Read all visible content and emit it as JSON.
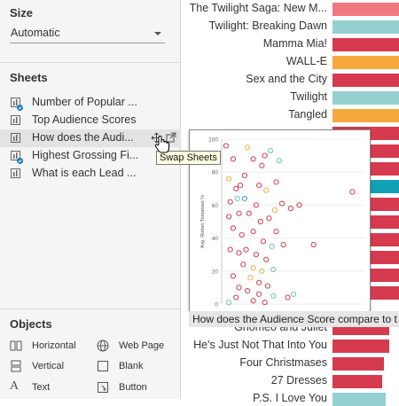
{
  "size": {
    "title": "Size",
    "value": "Automatic"
  },
  "sheets": {
    "title": "Sheets",
    "items": [
      {
        "label": "Number of Popular ..."
      },
      {
        "label": "Top Audience Scores"
      },
      {
        "label": "How does the Audi..."
      },
      {
        "label": "Highest Grossing Fi..."
      },
      {
        "label": "What is each Lead ..."
      }
    ]
  },
  "tooltip": "Swap Sheets",
  "objects": {
    "title": "Objects",
    "items": [
      {
        "label": "Horizontal",
        "icon": "horizontal-container-icon"
      },
      {
        "label": "Web Page",
        "icon": "globe-icon"
      },
      {
        "label": "Vertical",
        "icon": "vertical-container-icon"
      },
      {
        "label": "Blank",
        "icon": "blank-icon"
      },
      {
        "label": "Text",
        "icon": "text-icon"
      },
      {
        "label": "Button",
        "icon": "button-icon"
      }
    ]
  },
  "bars": {
    "rows": [
      {
        "label": "The Twilight Saga: New M...",
        "color": "#f0787e",
        "value": 0.34
      },
      {
        "label": "Twilight: Breaking Dawn",
        "color": "#94d0d1",
        "value": 0.34
      },
      {
        "label": "Mamma Mia!",
        "color": "#d63a4f",
        "value": 0.34
      },
      {
        "label": "WALL-E",
        "color": "#f5a93c",
        "value": 0.34
      },
      {
        "label": "Sex and the City",
        "color": "#d63a4f",
        "value": 0.34
      },
      {
        "label": "Twilight",
        "color": "#94d0d1",
        "value": 0.34
      },
      {
        "label": "Tangled",
        "color": "#f5a93c",
        "value": 0.34
      },
      {
        "label": "Gnomeo and Juliet",
        "color": "#d63a4f",
        "value": 0.29
      },
      {
        "label": "He's Just Not That Into You",
        "color": "#d63a4f",
        "value": 0.29
      },
      {
        "label": "Four Christmases",
        "color": "#d63a4f",
        "value": 0.26
      },
      {
        "label": "27 Dresses",
        "color": "#d63a4f",
        "value": 0.25
      },
      {
        "label": "P.S. I Love You",
        "color": "#94d0d1",
        "value": 0.27
      }
    ],
    "hidden_bars": [
      {
        "color": "#d63a4f"
      },
      {
        "color": "#d63a4f"
      },
      {
        "color": "#d63a4f"
      },
      {
        "color": "#12a0b4"
      },
      {
        "color": "#d63a4f"
      },
      {
        "color": "#d63a4f"
      },
      {
        "color": "#d63a4f"
      },
      {
        "color": "#d63a4f"
      },
      {
        "color": "#d63a4f"
      },
      {
        "color": "#d63a4f"
      }
    ]
  },
  "drag_preview": {
    "caption": "How does the Audience Score compare to t",
    "chart_data": {
      "type": "scatter",
      "ylabel": "Avg. Rotten Tomatoes %",
      "y_ticks": [
        "100",
        "80",
        "60",
        "40",
        "20",
        "0"
      ],
      "ylim": [
        0,
        100
      ],
      "xlim": [
        0,
        100
      ],
      "colors": {
        "red": "#d63a4f",
        "teal": "#6cc0c4",
        "orange": "#f5a93c",
        "green": "#a6c94a",
        "blue": "#4a8fd4"
      },
      "points": [
        {
          "x": 3,
          "y": 96,
          "c": "red"
        },
        {
          "x": 8,
          "y": 88,
          "c": "red"
        },
        {
          "x": 18,
          "y": 95,
          "c": "orange"
        },
        {
          "x": 22,
          "y": 88,
          "c": "red"
        },
        {
          "x": 30,
          "y": 90,
          "c": "red"
        },
        {
          "x": 34,
          "y": 93,
          "c": "teal"
        },
        {
          "x": 40,
          "y": 87,
          "c": "teal"
        },
        {
          "x": 28,
          "y": 84,
          "c": "red"
        },
        {
          "x": 16,
          "y": 78,
          "c": "red"
        },
        {
          "x": 5,
          "y": 76,
          "c": "orange"
        },
        {
          "x": 10,
          "y": 70,
          "c": "red"
        },
        {
          "x": 13,
          "y": 72,
          "c": "red"
        },
        {
          "x": 26,
          "y": 72,
          "c": "red"
        },
        {
          "x": 31,
          "y": 69,
          "c": "orange"
        },
        {
          "x": 38,
          "y": 74,
          "c": "red"
        },
        {
          "x": 6,
          "y": 62,
          "c": "red"
        },
        {
          "x": 11,
          "y": 64,
          "c": "teal"
        },
        {
          "x": 16,
          "y": 64,
          "c": "blue"
        },
        {
          "x": 24,
          "y": 60,
          "c": "red"
        },
        {
          "x": 42,
          "y": 61,
          "c": "red"
        },
        {
          "x": 48,
          "y": 58,
          "c": "red"
        },
        {
          "x": 54,
          "y": 60,
          "c": "red"
        },
        {
          "x": 37,
          "y": 57,
          "c": "orange"
        },
        {
          "x": 5,
          "y": 53,
          "c": "red"
        },
        {
          "x": 12,
          "y": 55,
          "c": "red"
        },
        {
          "x": 19,
          "y": 55,
          "c": "red"
        },
        {
          "x": 27,
          "y": 50,
          "c": "red"
        },
        {
          "x": 33,
          "y": 52,
          "c": "red"
        },
        {
          "x": 38,
          "y": 44,
          "c": "red"
        },
        {
          "x": 8,
          "y": 46,
          "c": "red"
        },
        {
          "x": 14,
          "y": 42,
          "c": "red"
        },
        {
          "x": 22,
          "y": 44,
          "c": "red"
        },
        {
          "x": 29,
          "y": 38,
          "c": "red"
        },
        {
          "x": 35,
          "y": 35,
          "c": "teal"
        },
        {
          "x": 43,
          "y": 36,
          "c": "red"
        },
        {
          "x": 64,
          "y": 36,
          "c": "red"
        },
        {
          "x": 91,
          "y": 68,
          "c": "red"
        },
        {
          "x": 6,
          "y": 33,
          "c": "red"
        },
        {
          "x": 12,
          "y": 31,
          "c": "red"
        },
        {
          "x": 17,
          "y": 33,
          "c": "red"
        },
        {
          "x": 24,
          "y": 30,
          "c": "red"
        },
        {
          "x": 31,
          "y": 27,
          "c": "red"
        },
        {
          "x": 15,
          "y": 24,
          "c": "red"
        },
        {
          "x": 22,
          "y": 22,
          "c": "orange"
        },
        {
          "x": 28,
          "y": 20,
          "c": "green"
        },
        {
          "x": 36,
          "y": 21,
          "c": "teal"
        },
        {
          "x": 8,
          "y": 17,
          "c": "red"
        },
        {
          "x": 20,
          "y": 16,
          "c": "orange"
        },
        {
          "x": 26,
          "y": 13,
          "c": "red"
        },
        {
          "x": 32,
          "y": 11,
          "c": "red"
        },
        {
          "x": 18,
          "y": 8,
          "c": "red"
        },
        {
          "x": 26,
          "y": 6,
          "c": "red"
        },
        {
          "x": 36,
          "y": 5,
          "c": "teal"
        },
        {
          "x": 46,
          "y": 4,
          "c": "red"
        },
        {
          "x": 10,
          "y": 4,
          "c": "red"
        },
        {
          "x": 5,
          "y": 1,
          "c": "teal"
        },
        {
          "x": 22,
          "y": 2,
          "c": "red"
        },
        {
          "x": 30,
          "y": 1,
          "c": "red"
        },
        {
          "x": 50,
          "y": 6,
          "c": "teal"
        },
        {
          "x": 12,
          "y": 10,
          "c": "red"
        }
      ]
    }
  }
}
